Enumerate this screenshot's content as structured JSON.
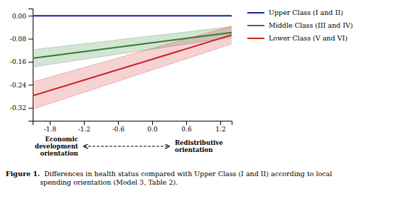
{
  "chart_data": {
    "type": "line",
    "x": [
      -2.1,
      1.4
    ],
    "xlim": [
      -2.1,
      1.4
    ],
    "ylim": [
      -0.365,
      0.025
    ],
    "xticks": [
      -1.8,
      -1.2,
      -0.6,
      {
        "value": 0.0,
        "label": "0.0"
      },
      0.6,
      1.2
    ],
    "yticks": [
      {
        "value": 0.0,
        "label": "0.00"
      },
      -0.08,
      -0.16,
      -0.24,
      -0.32
    ],
    "series": [
      {
        "name": "Upper Class (I and II)",
        "color": "#1a1aaa",
        "values": [
          0.0,
          0.0
        ]
      },
      {
        "name": "Middle Class (III and IV)",
        "color": "#2e7d2e",
        "values": [
          -0.148,
          -0.058
        ],
        "ci_low": [
          -0.178,
          -0.075
        ],
        "ci_high": [
          -0.118,
          -0.038
        ]
      },
      {
        "name": "Lower Class (V and VI)",
        "color": "#cc2222",
        "values": [
          -0.278,
          -0.067
        ],
        "ci_low": [
          -0.325,
          -0.098
        ],
        "ci_high": [
          -0.23,
          -0.036
        ]
      }
    ],
    "legend": "right",
    "annotations": [
      {
        "text": "Economic\ndevelopment\norientation"
      },
      {
        "text": "Redistributive\norientation"
      },
      {
        "type": "arrow",
        "x": [
          -1.2,
          0.3
        ]
      }
    ],
    "caption_label": "Figure 1.",
    "caption": "  Differences in health status compared with Upper Class (I and II) according to local\nspending orientation (Model 3, Table 2)."
  }
}
